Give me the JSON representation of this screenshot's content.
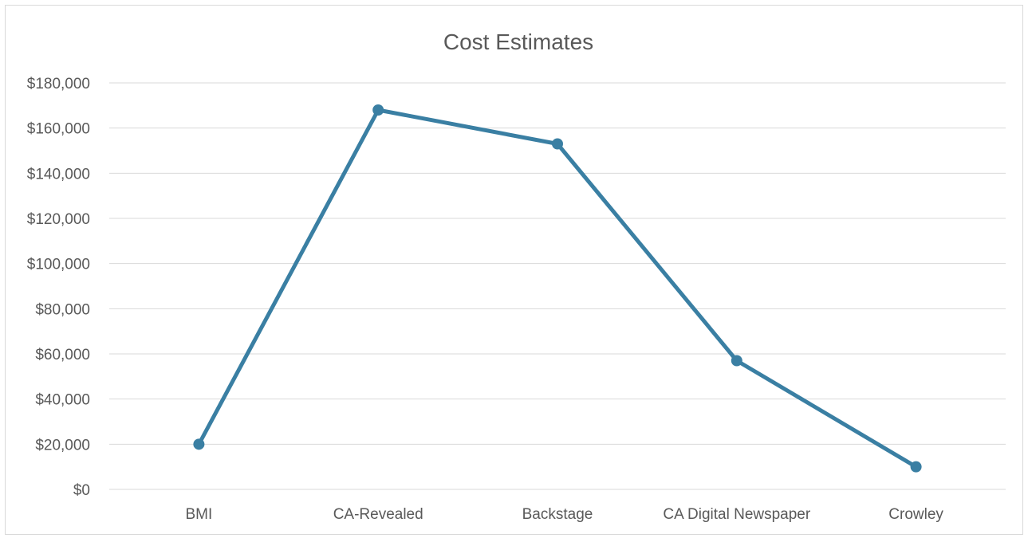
{
  "chart_data": {
    "type": "line",
    "title": "Cost Estimates",
    "categories": [
      "BMI",
      "CA-Revealed",
      "Backstage",
      "CA Digital Newspaper",
      "Crowley"
    ],
    "series": [
      {
        "values": [
          20000,
          168000,
          153000,
          57000,
          10000
        ],
        "color": "#3a7fa3"
      }
    ],
    "ylim": [
      0,
      180000
    ],
    "yticks": [
      0,
      20000,
      40000,
      60000,
      80000,
      100000,
      120000,
      140000,
      160000,
      180000
    ],
    "ytick_labels": [
      "$0",
      "$20,000",
      "$40,000",
      "$60,000",
      "$80,000",
      "$100,000",
      "$120,000",
      "$140,000",
      "$160,000",
      "$180,000"
    ],
    "grid": true,
    "legend": "none"
  }
}
